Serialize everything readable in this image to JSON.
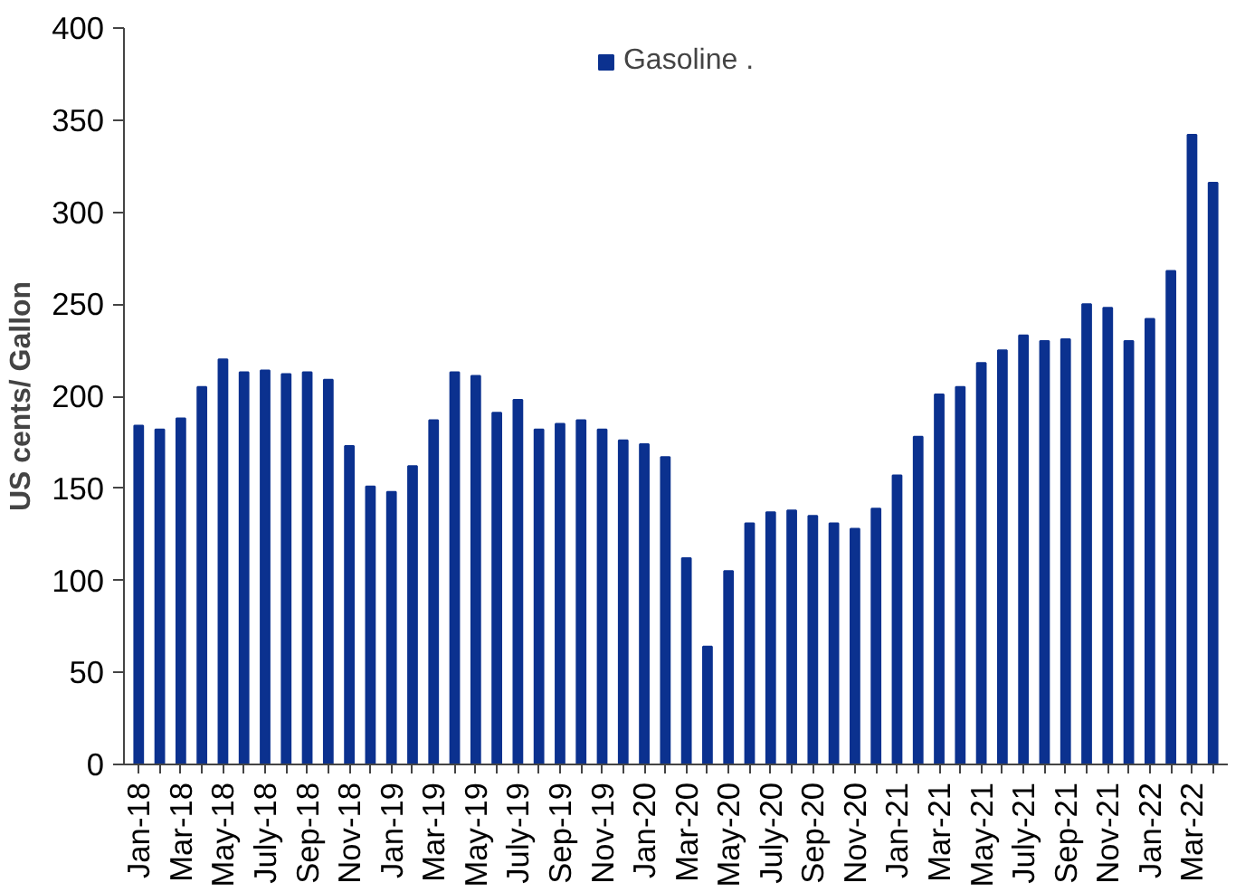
{
  "chart_data": {
    "type": "bar",
    "ylabel": "US cents/ Gallon",
    "categories": [
      "Jan-18",
      null,
      "Mar-18",
      null,
      "May-18",
      null,
      "July-18",
      null,
      "Sep-18",
      null,
      "Nov-18",
      null,
      "Jan-19",
      null,
      "Mar-19",
      null,
      "May-19",
      null,
      "July-19",
      null,
      "Sep-19",
      null,
      "Nov-19",
      null,
      "Jan-20",
      null,
      "Mar-20",
      null,
      "May-20",
      null,
      "July-20",
      null,
      "Sep-20",
      null,
      "Nov-20",
      null,
      "Jan-21",
      null,
      "Mar-21",
      null,
      "May-21",
      null,
      "July-21",
      null,
      "Sep-21",
      null,
      "Nov-21",
      null,
      "Jan-22",
      null,
      "Mar-22",
      null
    ],
    "series": [
      {
        "name": "Gasoline .",
        "color": "#0b318f",
        "values": [
          184,
          182,
          188,
          205,
          220,
          213,
          214,
          212,
          213,
          209,
          173,
          151,
          148,
          162,
          187,
          213,
          211,
          191,
          198,
          182,
          185,
          187,
          182,
          176,
          174,
          167,
          112,
          64,
          105,
          131,
          137,
          138,
          135,
          131,
          128,
          139,
          157,
          178,
          201,
          205,
          218,
          225,
          233,
          230,
          231,
          250,
          248,
          230,
          242,
          268,
          342,
          316
        ]
      }
    ],
    "ylim": [
      0,
      400
    ],
    "yticks": [
      0,
      50,
      100,
      150,
      200,
      250,
      300,
      350,
      400
    ],
    "grid": false,
    "legend": "top"
  }
}
